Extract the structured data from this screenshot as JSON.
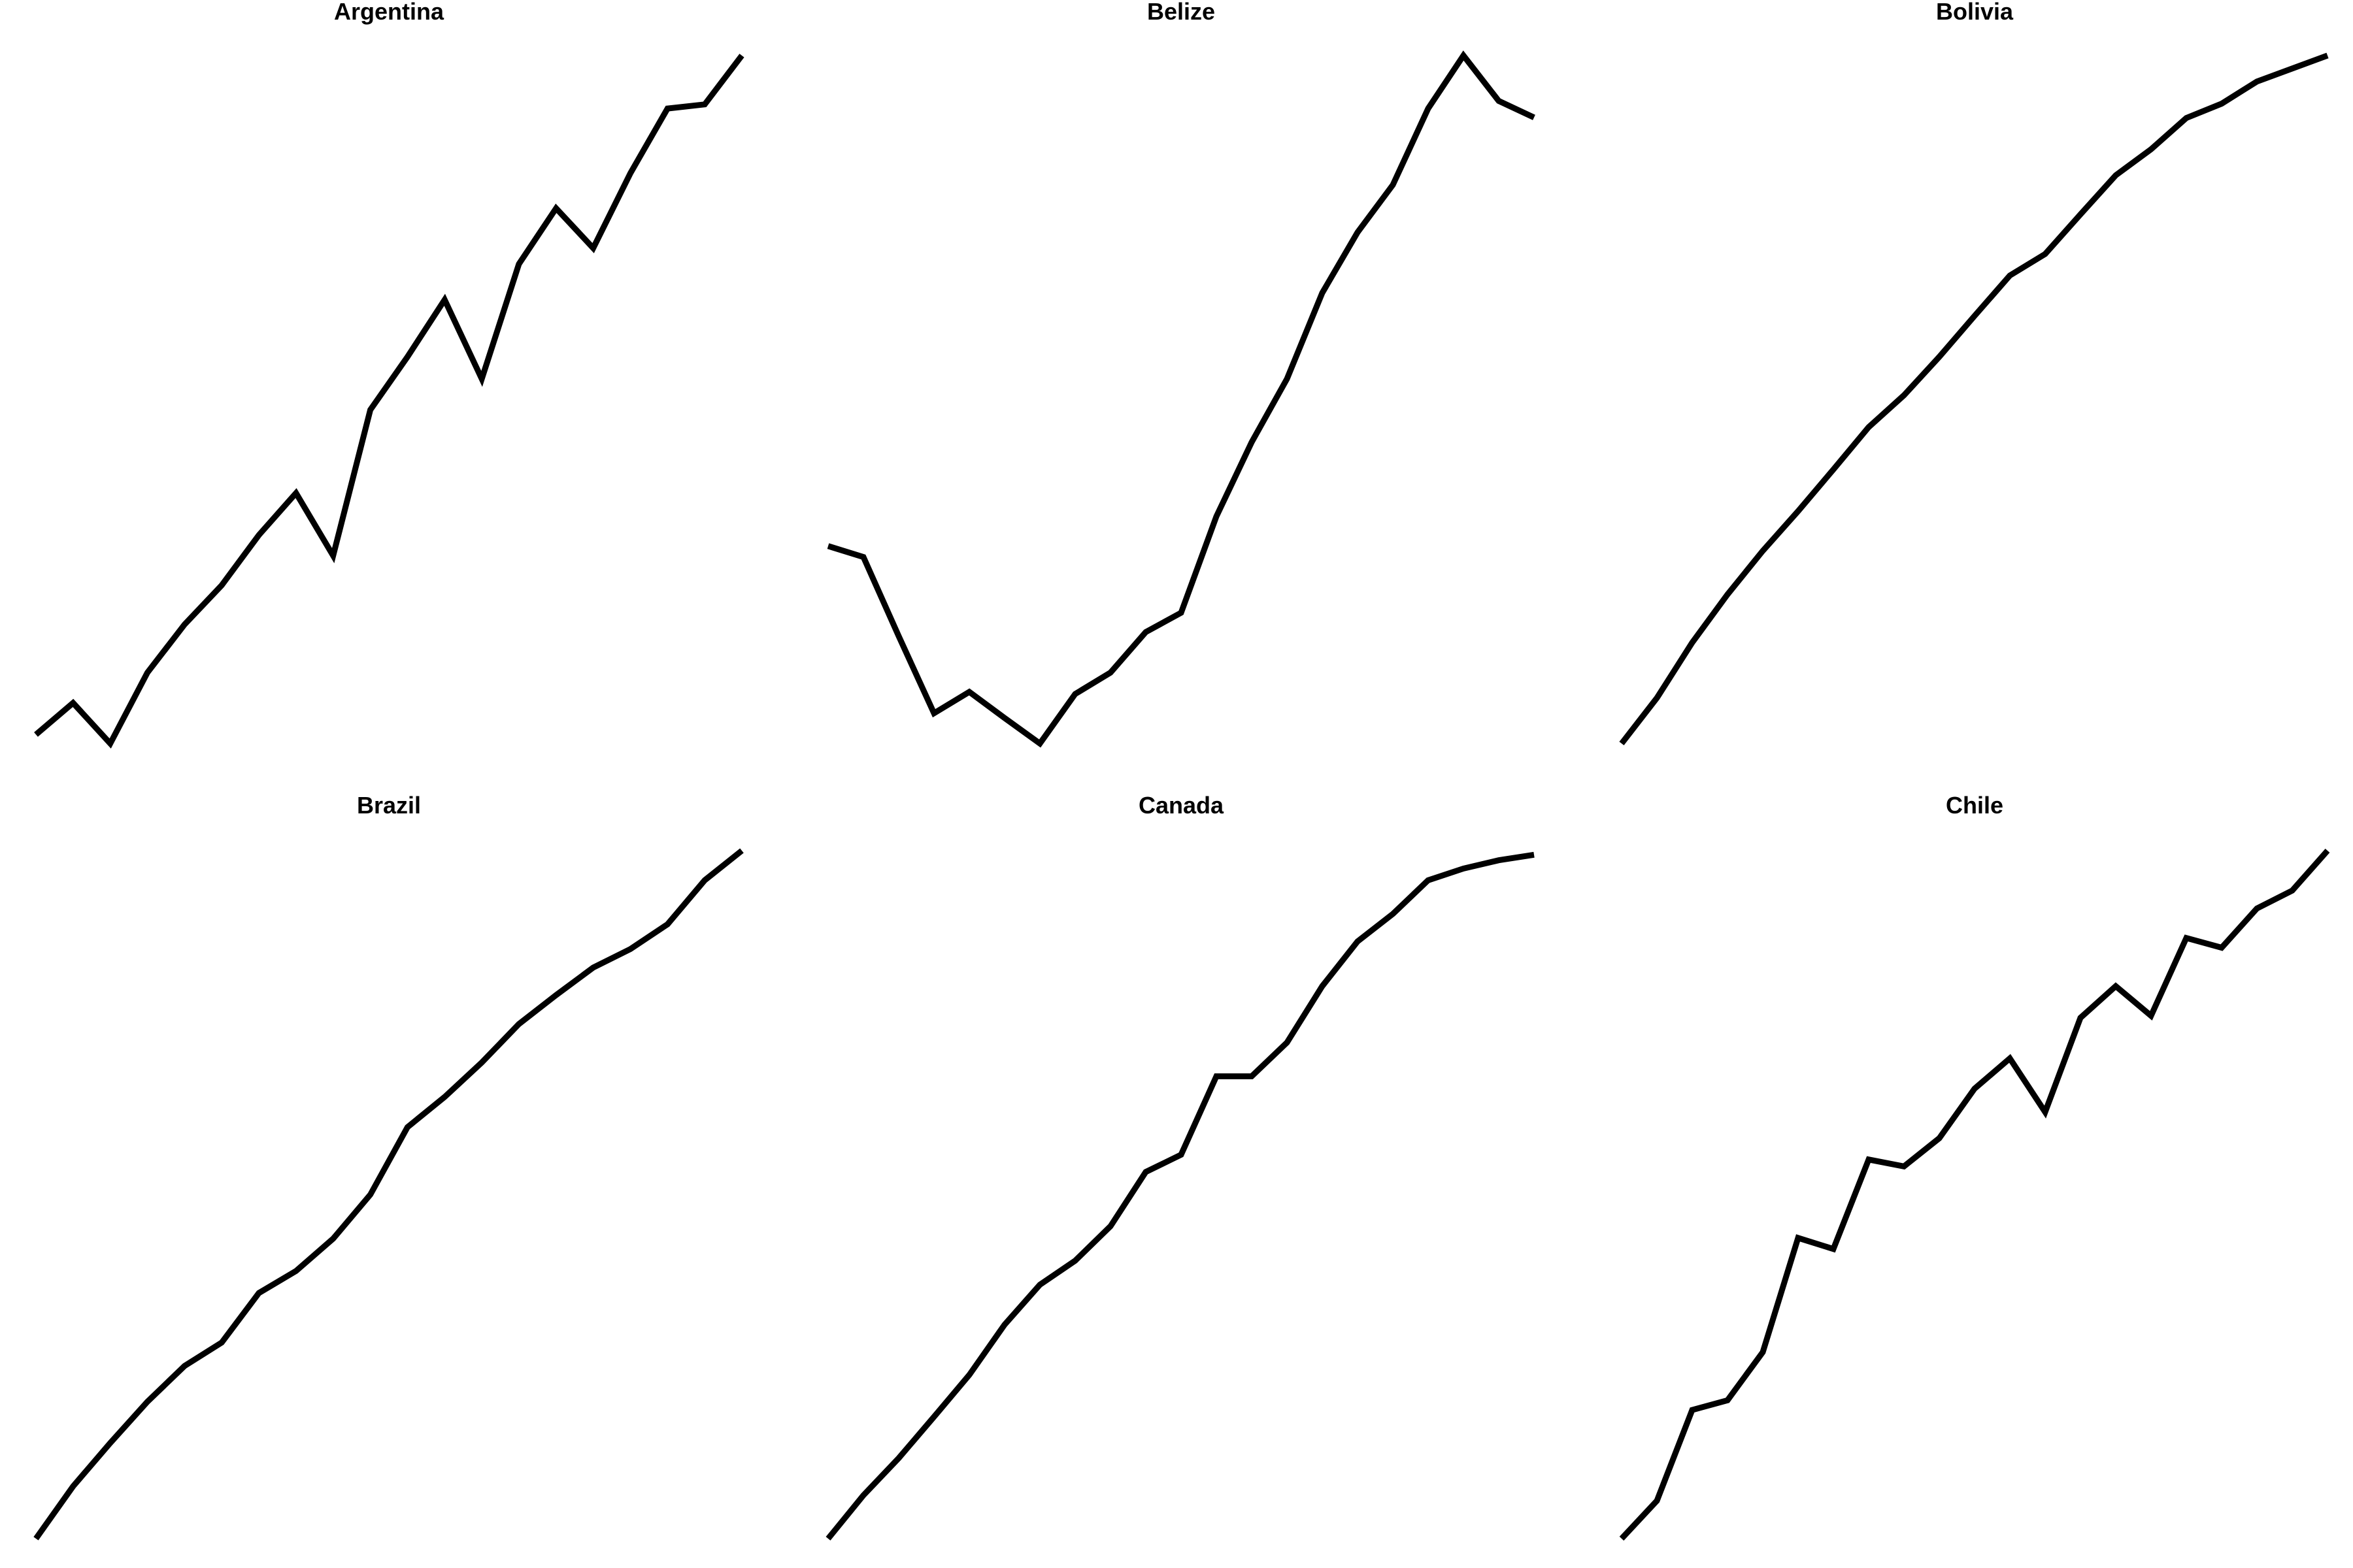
{
  "chart_data": [
    {
      "type": "line",
      "title": "Argentina",
      "x": [
        0,
        1,
        2,
        3,
        4,
        5,
        6,
        7,
        8,
        9,
        10,
        11,
        12,
        13,
        14,
        15,
        16,
        17,
        18,
        19
      ],
      "y": [
        0.013,
        0.059,
        0.0,
        0.103,
        0.173,
        0.23,
        0.303,
        0.364,
        0.273,
        0.485,
        0.562,
        0.645,
        0.53,
        0.697,
        0.778,
        0.72,
        0.829,
        0.923,
        0.929,
        1.0
      ],
      "series": [
        {
          "values": [
            0.013,
            0.059,
            0.0,
            0.103,
            0.173,
            0.23,
            0.303,
            0.364,
            0.273,
            0.485,
            0.562,
            0.645,
            0.53,
            0.697,
            0.778,
            0.72,
            0.829,
            0.923,
            0.929,
            1.0
          ]
        }
      ],
      "ylim": [
        0,
        1
      ],
      "grid": false,
      "axes_visible": false
    },
    {
      "type": "line",
      "title": "Belize",
      "x": [
        0,
        1,
        2,
        3,
        4,
        5,
        6,
        7,
        8,
        9,
        10,
        11,
        12,
        13,
        14,
        15,
        16,
        17,
        18,
        19,
        20
      ],
      "y": [
        0.287,
        0.271,
        0.156,
        0.044,
        0.075,
        0.037,
        0.0,
        0.072,
        0.103,
        0.162,
        0.19,
        0.33,
        0.438,
        0.53,
        0.655,
        0.743,
        0.812,
        0.923,
        1.0,
        0.934,
        0.91
      ],
      "series": [
        {
          "values": [
            0.287,
            0.271,
            0.156,
            0.044,
            0.075,
            0.037,
            0.0,
            0.072,
            0.103,
            0.162,
            0.19,
            0.33,
            0.438,
            0.53,
            0.655,
            0.743,
            0.812,
            0.923,
            1.0,
            0.934,
            0.91
          ]
        }
      ],
      "ylim": [
        0,
        1
      ],
      "grid": false,
      "axes_visible": false
    },
    {
      "type": "line",
      "title": "Bolivia",
      "x": [
        0,
        1,
        2,
        3,
        4,
        5,
        6,
        7,
        8,
        9,
        10,
        11,
        12,
        13,
        14,
        15,
        16,
        17,
        18,
        19,
        20
      ],
      "y": [
        0.0,
        0.07,
        0.155,
        0.229,
        0.296,
        0.357,
        0.421,
        0.486,
        0.535,
        0.594,
        0.657,
        0.719,
        0.752,
        0.813,
        0.873,
        0.913,
        0.961,
        0.983,
        1.017,
        1.037,
        1.057
      ],
      "series": [
        {
          "values": [
            0.0,
            0.07,
            0.155,
            0.229,
            0.296,
            0.357,
            0.421,
            0.486,
            0.535,
            0.594,
            0.657,
            0.719,
            0.752,
            0.813,
            0.873,
            0.913,
            0.961,
            0.983,
            1.017,
            1.037,
            1.057
          ]
        }
      ],
      "ylim": [
        0,
        1.057
      ],
      "grid": false,
      "axes_visible": false
    },
    {
      "type": "line",
      "title": "Brazil",
      "x": [
        0,
        1,
        2,
        3,
        4,
        5,
        6,
        7,
        8,
        9,
        10,
        11,
        12,
        13,
        14,
        15,
        16,
        17,
        18,
        19
      ],
      "y": [
        0.0,
        0.076,
        0.139,
        0.199,
        0.251,
        0.285,
        0.357,
        0.389,
        0.436,
        0.5,
        0.598,
        0.642,
        0.692,
        0.748,
        0.79,
        0.83,
        0.857,
        0.893,
        0.957,
        1.0
      ],
      "series": [
        {
          "values": [
            0.0,
            0.076,
            0.139,
            0.199,
            0.251,
            0.285,
            0.357,
            0.389,
            0.436,
            0.5,
            0.598,
            0.642,
            0.692,
            0.748,
            0.79,
            0.83,
            0.857,
            0.893,
            0.957,
            1.0
          ]
        }
      ],
      "ylim": [
        0,
        1
      ],
      "grid": false,
      "axes_visible": false
    },
    {
      "type": "line",
      "title": "Canada",
      "x": [
        0,
        1,
        2,
        3,
        4,
        5,
        6,
        7,
        8,
        9,
        10,
        11,
        12,
        13,
        14,
        15,
        16,
        17,
        18,
        19,
        20
      ],
      "y": [
        0.0,
        0.063,
        0.117,
        0.177,
        0.238,
        0.311,
        0.369,
        0.404,
        0.454,
        0.533,
        0.558,
        0.672,
        0.672,
        0.721,
        0.803,
        0.868,
        0.908,
        0.957,
        0.974,
        0.986,
        0.994
      ],
      "series": [
        {
          "values": [
            0.0,
            0.063,
            0.117,
            0.177,
            0.238,
            0.311,
            0.369,
            0.404,
            0.454,
            0.533,
            0.558,
            0.672,
            0.672,
            0.721,
            0.803,
            0.868,
            0.908,
            0.957,
            0.974,
            0.986,
            0.994
          ]
        }
      ],
      "ylim": [
        0,
        1
      ],
      "grid": false,
      "axes_visible": false
    },
    {
      "type": "line",
      "title": "Chile",
      "x": [
        0,
        1,
        2,
        3,
        4,
        5,
        6,
        7,
        8,
        9,
        10,
        11,
        12,
        13,
        14,
        15,
        16,
        17,
        18,
        19,
        20
      ],
      "y": [
        0.0,
        0.055,
        0.187,
        0.201,
        0.271,
        0.437,
        0.421,
        0.551,
        0.541,
        0.582,
        0.654,
        0.698,
        0.62,
        0.757,
        0.803,
        0.76,
        0.873,
        0.859,
        0.916,
        0.942,
        1.0
      ],
      "series": [
        {
          "values": [
            0.0,
            0.055,
            0.187,
            0.201,
            0.271,
            0.437,
            0.421,
            0.551,
            0.541,
            0.582,
            0.654,
            0.698,
            0.62,
            0.757,
            0.803,
            0.76,
            0.873,
            0.859,
            0.916,
            0.942,
            1.0
          ]
        }
      ],
      "ylim": [
        0,
        1
      ],
      "grid": false,
      "axes_visible": false
    }
  ],
  "style": {
    "line_color": "#000000",
    "background": "#ffffff"
  }
}
